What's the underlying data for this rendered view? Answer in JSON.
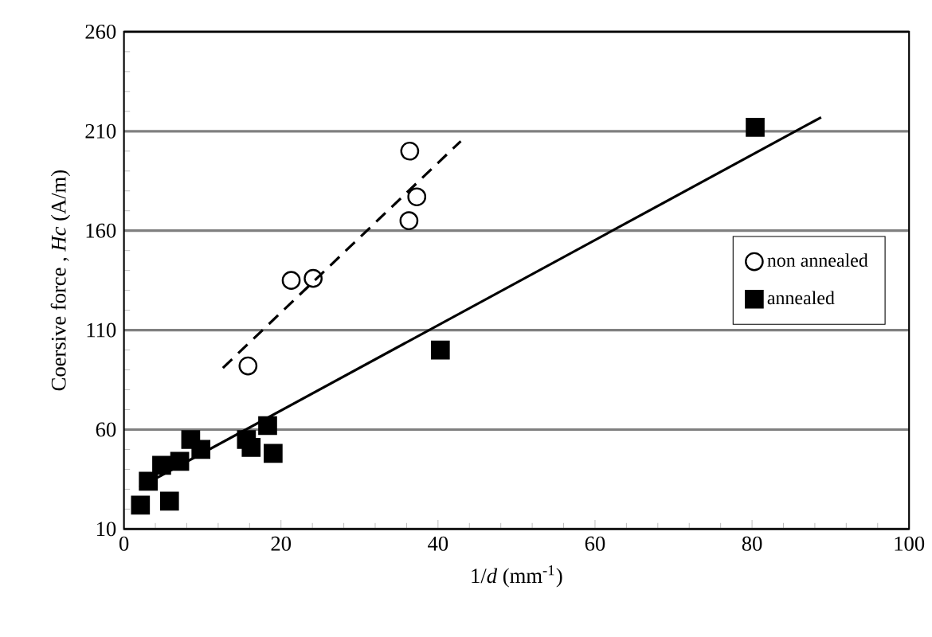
{
  "chart_data": {
    "type": "scatter",
    "xlabel": "1/*d*  (mm$^{-1}$)",
    "ylabel": "Coersive force , *Hc* (A/m)",
    "xlim": [
      0,
      100
    ],
    "xticks": [
      0,
      20,
      40,
      60,
      80,
      100
    ],
    "ylim": [
      10,
      260
    ],
    "yticks": [
      10,
      60,
      110,
      160,
      210,
      260
    ],
    "grid": "y",
    "legend": "right",
    "series": [
      {
        "name": "non annealed",
        "color": "#000000",
        "marker": "circle",
        "x": [
          15.8,
          21.3,
          24.1,
          36.4,
          37.3,
          36.3
        ],
        "values": [
          92,
          135,
          136,
          200,
          177,
          165
        ]
      },
      {
        "name": "annealed",
        "color": "#000000",
        "marker": "square",
        "x": [
          2.1,
          3.1,
          5.8,
          4.8,
          7.1,
          8.5,
          9.8,
          15.6,
          16.2,
          18.3,
          19,
          40.3,
          80.4
        ],
        "values": [
          22,
          34,
          24,
          42,
          44,
          55,
          50,
          55,
          51,
          62,
          48,
          100,
          212
        ]
      },
      {
        "type": "line",
        "color": "#000000",
        "marker": "none",
        "line_style": "dashed",
        "x": [
          12.6,
          42.9
        ],
        "values": [
          91,
          205
        ]
      },
      {
        "type": "line",
        "color": "#000000",
        "marker": "none",
        "line_style": "solid",
        "x": [
          2,
          88.8
        ],
        "values": [
          31,
          217
        ]
      }
    ]
  }
}
